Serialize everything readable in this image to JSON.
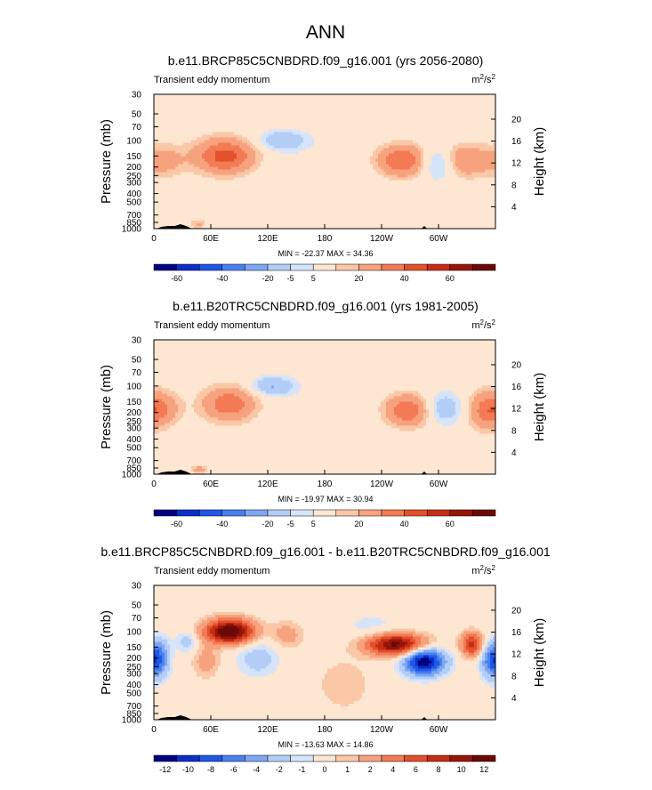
{
  "figure": {
    "title": "ANN",
    "colors": {
      "background": "#fde6d2",
      "contour_ramp": [
        "#000080",
        "#0a2fc8",
        "#1f57e6",
        "#4a80ee",
        "#7ea6f2",
        "#b3cdf7",
        "#d6e4fa",
        "#fde6d2",
        "#fac7a7",
        "#f7a27e",
        "#f27a54",
        "#e2502c",
        "#c42d14",
        "#96140a",
        "#6b0808"
      ],
      "terrain": "#000000"
    }
  },
  "chart_data": [
    {
      "type": "heatmap",
      "title": "b.e11.BRCP85C5CNBDRD.f09_g16.001 (yrs 2056-2080)",
      "left_label": "Transient eddy momentum",
      "units": {
        "base": "m",
        "sup1": "2",
        "mid": "/s",
        "sup2": "2"
      },
      "xlabel": "",
      "ylabel": "Pressure (mb)",
      "y2label": "Height (km)",
      "x_ticks": [
        "0",
        "60E",
        "120E",
        "180",
        "120W",
        "60W"
      ],
      "y_ticks": [
        "30",
        "50",
        "70",
        "100",
        "150",
        "200",
        "250",
        "300",
        "400",
        "500",
        "700",
        "850",
        "1000"
      ],
      "y2_ticks": [
        "20",
        "16",
        "12",
        "8",
        "4"
      ],
      "stats": {
        "min_label": "MIN = ",
        "min": "-22.37",
        "max_label": "MAX = ",
        "max": "34.36"
      },
      "colorbar_labels": [
        "-60",
        "-40",
        "-20",
        "-5",
        "5",
        "20",
        "40",
        "60"
      ],
      "features": [
        {
          "lon": 75,
          "p": 150,
          "value": 35,
          "sx": 22,
          "sy": 0.32
        },
        {
          "lon": 262,
          "p": 170,
          "value": 32,
          "sx": 20,
          "sy": 0.3
        },
        {
          "lon": 325,
          "p": 170,
          "value": 22,
          "sx": 18,
          "sy": 0.3
        },
        {
          "lon": 10,
          "p": 170,
          "value": 14,
          "sx": 16,
          "sy": 0.3
        },
        {
          "lon": 300,
          "p": 180,
          "value": -22,
          "sx": 14,
          "sy": 0.3
        },
        {
          "lon": 135,
          "p": 100,
          "value": -18,
          "sx": 18,
          "sy": 0.18
        },
        {
          "lon": 47,
          "p": 880,
          "value": 12,
          "sx": 6,
          "sy": 0.08
        },
        {
          "lon": 195,
          "p": 250,
          "value": -3.5,
          "sx": 60,
          "sy": 1.0
        }
      ]
    },
    {
      "type": "heatmap",
      "title": "b.e11.B20TRC5CNBDRD.f09_g16.001 (yrs 1981-2005)",
      "left_label": "Transient eddy momentum",
      "units": {
        "base": "m",
        "sup1": "2",
        "mid": "/s",
        "sup2": "2"
      },
      "xlabel": "",
      "ylabel": "Pressure (mb)",
      "y2label": "Height (km)",
      "x_ticks": [
        "0",
        "60E",
        "120E",
        "180",
        "120W",
        "60W"
      ],
      "y_ticks": [
        "30",
        "50",
        "70",
        "100",
        "150",
        "200",
        "250",
        "300",
        "400",
        "500",
        "700",
        "850",
        "1000"
      ],
      "y2_ticks": [
        "20",
        "16",
        "12",
        "8",
        "4"
      ],
      "stats": {
        "min_label": "MIN = ",
        "min": "-19.97",
        "max_label": "MAX = ",
        "max": "30.94"
      },
      "colorbar_labels": [
        "-60",
        "-40",
        "-20",
        "-5",
        "5",
        "20",
        "40",
        "60"
      ],
      "features": [
        {
          "lon": 80,
          "p": 160,
          "value": 28,
          "sx": 20,
          "sy": 0.32
        },
        {
          "lon": 268,
          "p": 190,
          "value": 31,
          "sx": 18,
          "sy": 0.3
        },
        {
          "lon": 350,
          "p": 190,
          "value": 22,
          "sx": 15,
          "sy": 0.35
        },
        {
          "lon": 8,
          "p": 180,
          "value": 16,
          "sx": 14,
          "sy": 0.3
        },
        {
          "lon": 305,
          "p": 180,
          "value": -18,
          "sx": 16,
          "sy": 0.3
        },
        {
          "lon": 125,
          "p": 100,
          "value": -20,
          "sx": 16,
          "sy": 0.18
        },
        {
          "lon": 48,
          "p": 880,
          "value": 14,
          "sx": 6,
          "sy": 0.08
        },
        {
          "lon": 195,
          "p": 250,
          "value": -3,
          "sx": 60,
          "sy": 1.0
        }
      ]
    },
    {
      "type": "heatmap",
      "title": "b.e11.BRCP85C5CNBDRD.f09_g16.001 - b.e11.B20TRC5CNBDRD.f09_g16.001",
      "left_label": "Transient eddy momentum",
      "units": {
        "base": "m",
        "sup1": "2",
        "mid": "/s",
        "sup2": "2"
      },
      "xlabel": "",
      "ylabel": "Pressure (mb)",
      "y2label": "Height (km)",
      "x_ticks": [
        "0",
        "60E",
        "120E",
        "180",
        "120W",
        "60W"
      ],
      "y_ticks": [
        "30",
        "50",
        "70",
        "100",
        "150",
        "200",
        "250",
        "300",
        "400",
        "500",
        "700",
        "850",
        "1000"
      ],
      "y2_ticks": [
        "20",
        "16",
        "12",
        "8",
        "4"
      ],
      "stats": {
        "min_label": "MIN = ",
        "min": "-13.63",
        "max_label": "MAX = ",
        "max": "14.86"
      },
      "colorbar_labels": [
        "-12",
        "-10",
        "-8",
        "-6",
        "-4",
        "-2",
        "-1",
        "0",
        "1",
        "2",
        "4",
        "6",
        "8",
        "10",
        "12"
      ],
      "features": [
        {
          "lon": 80,
          "p": 100,
          "value": 14.9,
          "sx": 18,
          "sy": 0.22
        },
        {
          "lon": 255,
          "p": 140,
          "value": 13,
          "sx": 22,
          "sy": 0.2
        },
        {
          "lon": 335,
          "p": 140,
          "value": 9,
          "sx": 8,
          "sy": 0.22
        },
        {
          "lon": 285,
          "p": 220,
          "value": -13.6,
          "sx": 15,
          "sy": 0.25
        },
        {
          "lon": 5,
          "p": 200,
          "value": -7,
          "sx": 8,
          "sy": 0.35
        },
        {
          "lon": 355,
          "p": 220,
          "value": -6,
          "sx": 8,
          "sy": 0.3
        },
        {
          "lon": 35,
          "p": 130,
          "value": -3,
          "sx": 8,
          "sy": 0.2
        },
        {
          "lon": 110,
          "p": 200,
          "value": -3,
          "sx": 16,
          "sy": 0.35
        },
        {
          "lon": 55,
          "p": 220,
          "value": 3,
          "sx": 10,
          "sy": 0.3
        },
        {
          "lon": 140,
          "p": 110,
          "value": 3,
          "sx": 12,
          "sy": 0.25
        },
        {
          "lon": 200,
          "p": 400,
          "value": 1.5,
          "sx": 25,
          "sy": 0.6
        },
        {
          "lon": 230,
          "p": 90,
          "value": -1.5,
          "sx": 25,
          "sy": 0.3
        }
      ]
    }
  ]
}
